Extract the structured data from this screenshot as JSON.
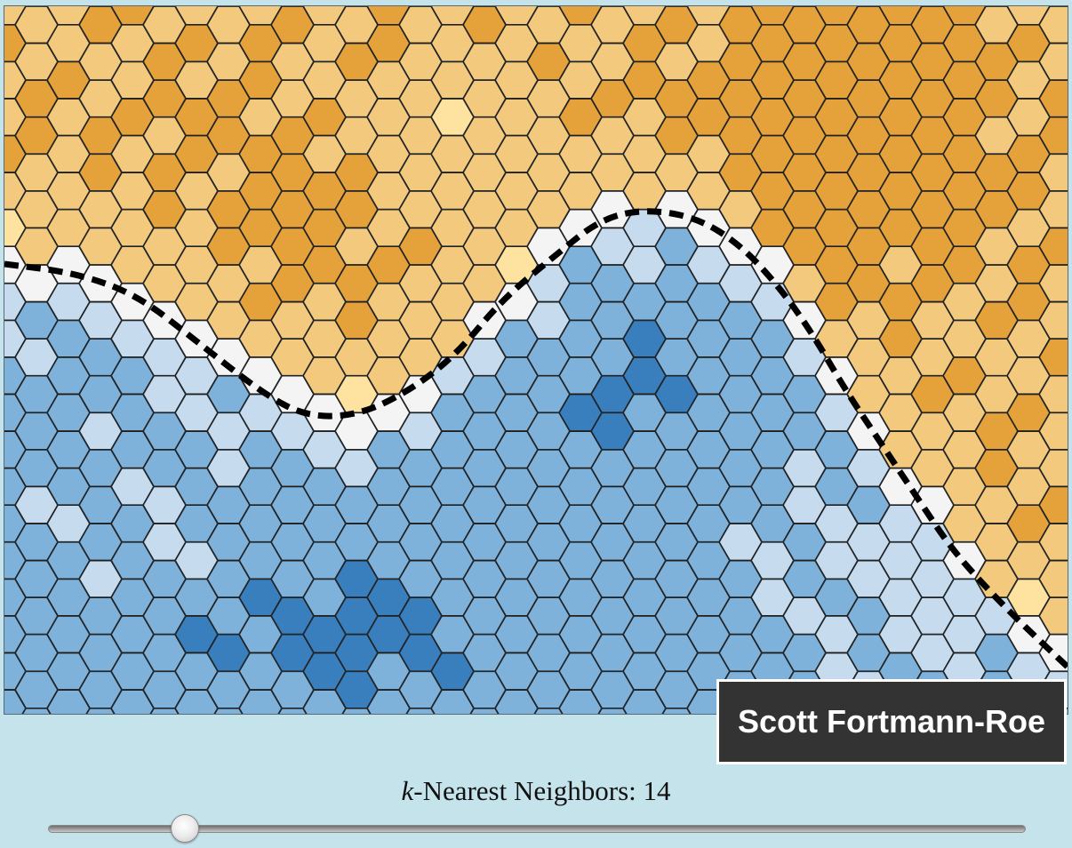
{
  "credit": "Scott Fortmann-Roe",
  "slider": {
    "label_italic": "k",
    "label_rest": "-Nearest Neighbors: ",
    "value": "14",
    "fraction": 0.14
  },
  "colors": {
    "orange_dark": "#cc7f20",
    "orange_mid": "#e6a23a",
    "orange_light": "#f3c97e",
    "orange_pale": "#fde39f",
    "neutral": "#f4f4f4",
    "blue_pale": "#c6dcee",
    "blue_light": "#7fb2da",
    "blue_mid": "#3a7fbd",
    "blue_dark": "#1a4ea5",
    "boundary": "#000000"
  }
}
